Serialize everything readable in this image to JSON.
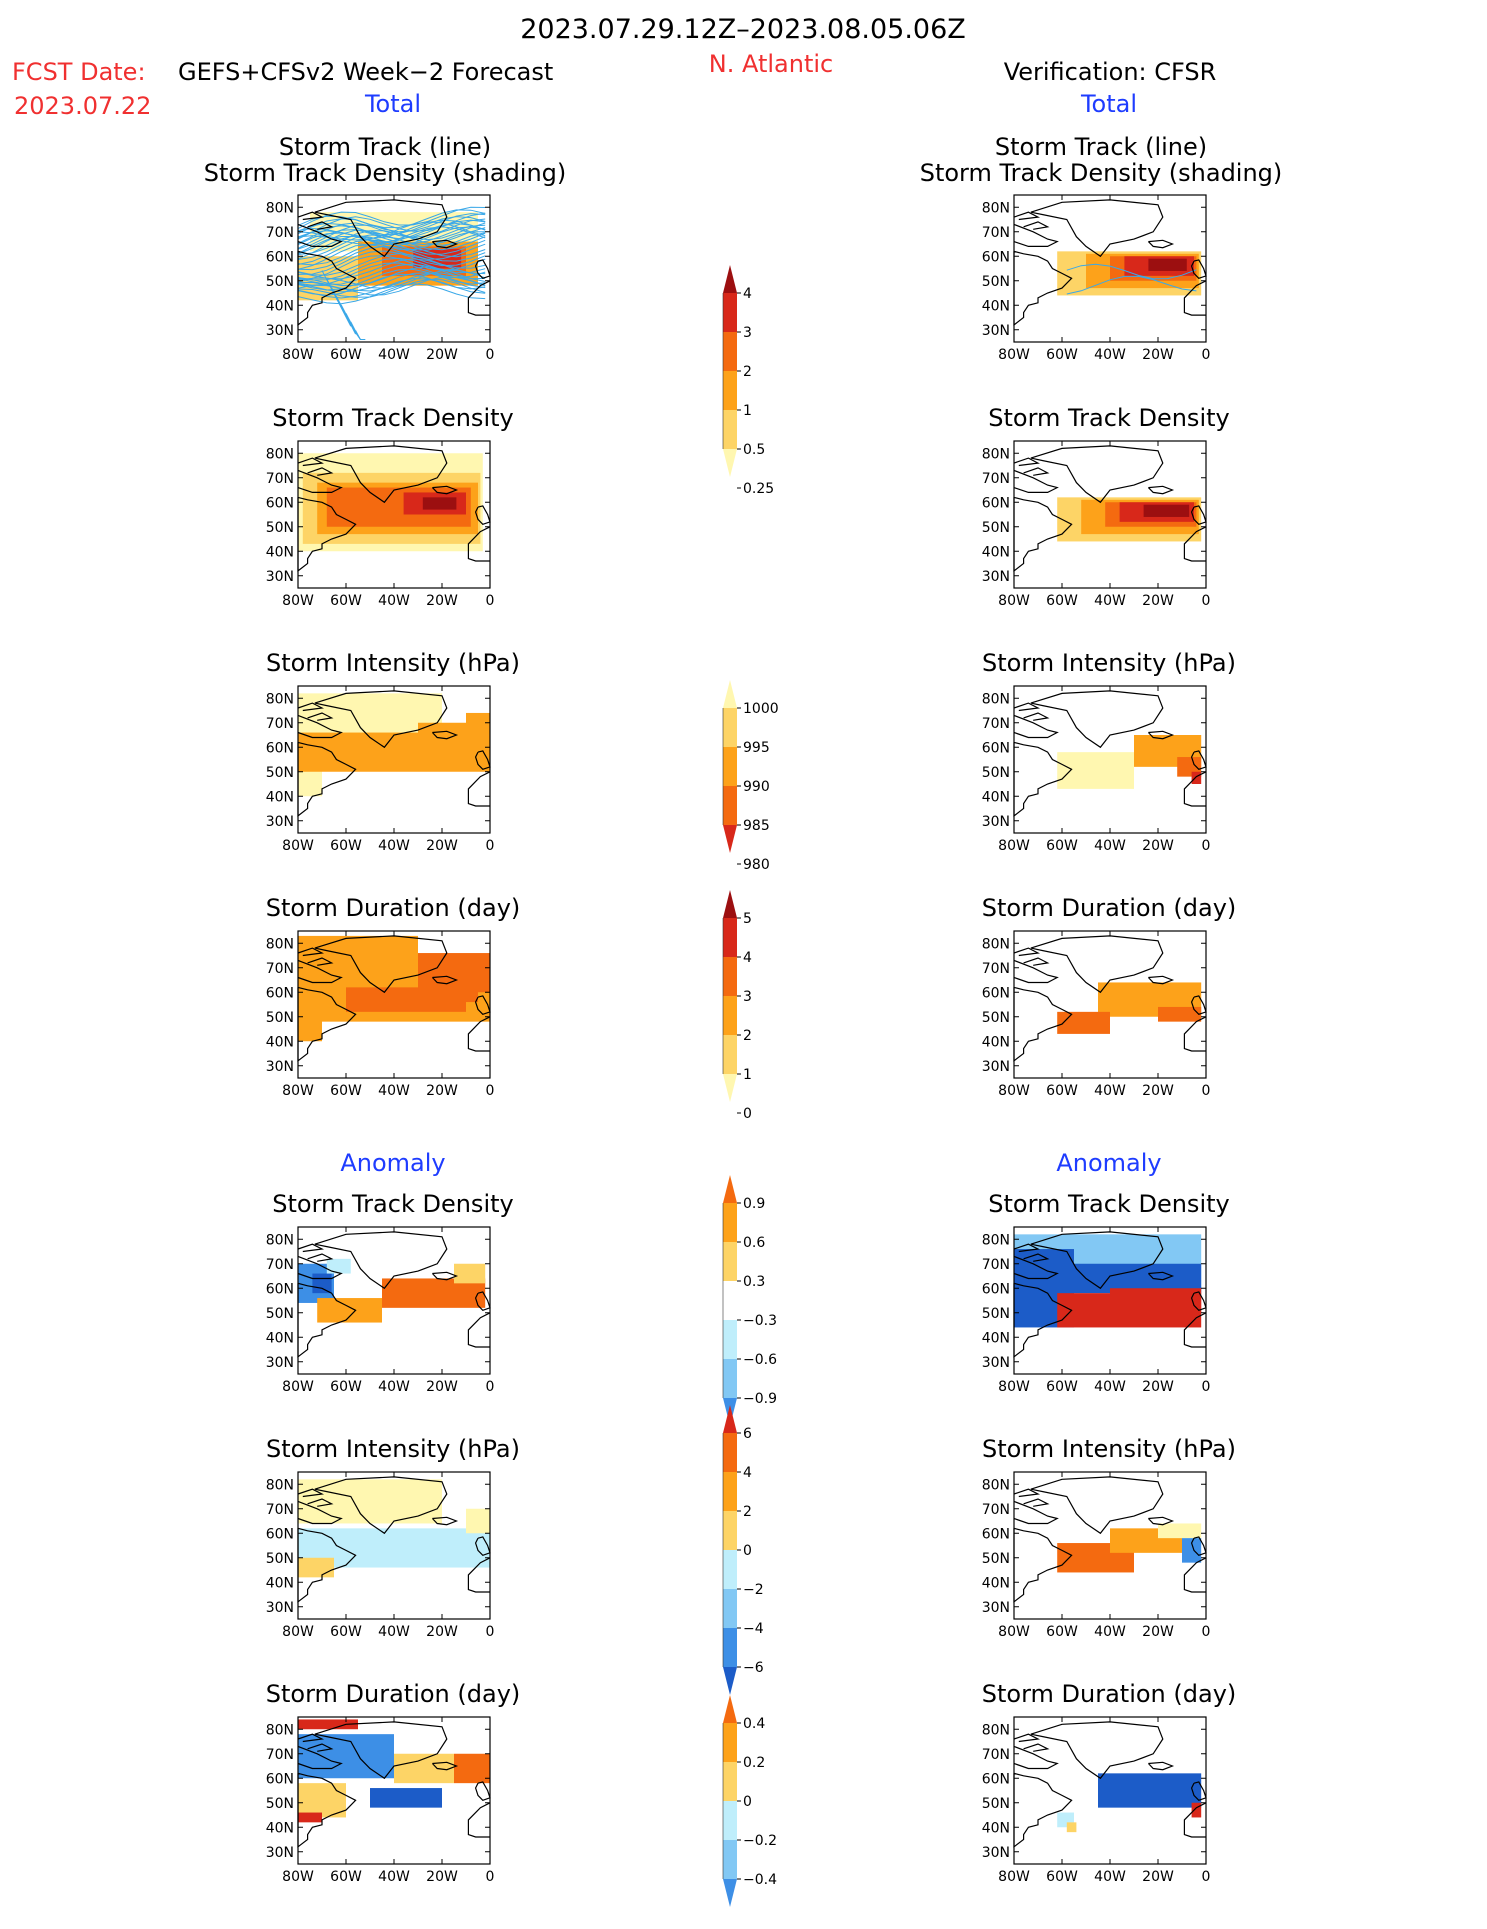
{
  "header": {
    "date_range": "2023.07.29.12Z–2023.08.05.06Z",
    "fcst_label": "FCST Date:",
    "fcst_model": "GEFS+CFSv2 Week−2 Forecast",
    "fcst_date": "2023.07.22",
    "region": "N. Atlantic",
    "verification": "Verification: CFSR",
    "left_total": "Total",
    "right_total": "Total",
    "left_anomaly": "Anomaly",
    "right_anomaly": "Anomaly"
  },
  "panel_titles": {
    "track_line": "Storm Track (line)",
    "track_shading": "Storm Track Density (shading)",
    "density": "Storm Track Density",
    "intensity": "Storm Intensity (hPa)",
    "duration": "Storm Duration (day)"
  },
  "axes": {
    "lon_ticks": [
      "80W",
      "60W",
      "40W",
      "20W",
      "0"
    ],
    "lat_ticks": [
      "80N",
      "70N",
      "60N",
      "50N",
      "40N",
      "30N"
    ]
  },
  "colors": {
    "title_red": "#f03030",
    "title_blue": "#1e3cff",
    "track_line": "#3aa8e8",
    "warm": [
      "#fff7b0",
      "#fdd466",
      "#fda21a",
      "#f46a10",
      "#d8281a",
      "#9c0f10"
    ],
    "cold": [
      "#bfeefb",
      "#82c8f4",
      "#3d8fe6",
      "#1c5cc8"
    ]
  },
  "colorbars": [
    {
      "name": "total-density",
      "labels": [
        "4",
        "3",
        "2",
        "1",
        "0.5",
        "0.25"
      ]
    },
    {
      "name": "total-intensity",
      "labels": [
        "1000",
        "995",
        "990",
        "985",
        "980"
      ]
    },
    {
      "name": "total-duration",
      "labels": [
        "5",
        "4",
        "3",
        "2",
        "1",
        "0"
      ]
    },
    {
      "name": "anomaly-density",
      "labels": [
        "0.9",
        "0.6",
        "0.3",
        "−0.3",
        "−0.6",
        "−0.9"
      ]
    },
    {
      "name": "anomaly-intensity",
      "labels": [
        "6",
        "4",
        "2",
        "0",
        "−2",
        "−4",
        "−6"
      ]
    },
    {
      "name": "anomaly-duration",
      "labels": [
        "0.4",
        "0.2",
        "0",
        "−0.2",
        "−0.4"
      ]
    }
  ],
  "chart_data": [
    {
      "type": "heatmap",
      "name": "forecast-total-track",
      "title": "Storm Track (line) / Storm Track Density (shading)",
      "xlim": [
        -80,
        0
      ],
      "ylim": [
        25,
        85
      ],
      "track_lines": 40,
      "cells": [
        {
          "lon": [
            -75,
            -5
          ],
          "lat": [
            62,
            78
          ],
          "level": 0
        },
        {
          "lon": [
            -80,
            -55
          ],
          "lat": [
            42,
            60
          ],
          "level": 1
        },
        {
          "lon": [
            -55,
            -5
          ],
          "lat": [
            48,
            66
          ],
          "level": 2
        },
        {
          "lon": [
            -45,
            -10
          ],
          "lat": [
            52,
            64
          ],
          "level": 3
        },
        {
          "lon": [
            -32,
            -12
          ],
          "lat": [
            55,
            63
          ],
          "level": 4
        }
      ]
    },
    {
      "type": "heatmap",
      "name": "verification-total-track",
      "title": "Storm Track (line) / Storm Track Density (shading)",
      "xlim": [
        -80,
        0
      ],
      "ylim": [
        25,
        85
      ],
      "track_lines": 2,
      "cells": [
        {
          "lon": [
            -62,
            -2
          ],
          "lat": [
            44,
            62
          ],
          "level": 1
        },
        {
          "lon": [
            -50,
            -3
          ],
          "lat": [
            47,
            61
          ],
          "level": 2
        },
        {
          "lon": [
            -40,
            -4
          ],
          "lat": [
            50,
            60
          ],
          "level": 3
        },
        {
          "lon": [
            -34,
            -5
          ],
          "lat": [
            52,
            60
          ],
          "level": 4
        },
        {
          "lon": [
            -24,
            -8
          ],
          "lat": [
            54,
            59
          ],
          "level": 5
        }
      ]
    },
    {
      "type": "heatmap",
      "name": "forecast-total-density",
      "title": "Storm Track Density",
      "xlim": [
        -80,
        0
      ],
      "ylim": [
        25,
        85
      ],
      "cells": [
        {
          "lon": [
            -80,
            -3
          ],
          "lat": [
            40,
            80
          ],
          "level": 0
        },
        {
          "lon": [
            -78,
            -4
          ],
          "lat": [
            43,
            72
          ],
          "level": 1
        },
        {
          "lon": [
            -72,
            -5
          ],
          "lat": [
            47,
            68
          ],
          "level": 2
        },
        {
          "lon": [
            -68,
            -8
          ],
          "lat": [
            50,
            66
          ],
          "level": 3
        },
        {
          "lon": [
            -36,
            -10
          ],
          "lat": [
            55,
            64
          ],
          "level": 4
        },
        {
          "lon": [
            -28,
            -14
          ],
          "lat": [
            57,
            62
          ],
          "level": 5
        }
      ]
    },
    {
      "type": "heatmap",
      "name": "verification-total-density",
      "title": "Storm Track Density",
      "xlim": [
        -80,
        0
      ],
      "ylim": [
        25,
        85
      ],
      "cells": [
        {
          "lon": [
            -62,
            -2
          ],
          "lat": [
            44,
            62
          ],
          "level": 1
        },
        {
          "lon": [
            -52,
            -3
          ],
          "lat": [
            47,
            61
          ],
          "level": 2
        },
        {
          "lon": [
            -42,
            -4
          ],
          "lat": [
            50,
            60
          ],
          "level": 3
        },
        {
          "lon": [
            -36,
            -5
          ],
          "lat": [
            52,
            60
          ],
          "level": 4
        },
        {
          "lon": [
            -26,
            -7
          ],
          "lat": [
            54,
            59
          ],
          "level": 5
        }
      ]
    },
    {
      "type": "heatmap",
      "name": "forecast-total-intensity",
      "title": "Storm Intensity (hPa)",
      "xlim": [
        -80,
        0
      ],
      "ylim": [
        25,
        85
      ],
      "cells": [
        {
          "lon": [
            -80,
            -20
          ],
          "lat": [
            64,
            82
          ],
          "level": 0
        },
        {
          "lon": [
            -80,
            -70
          ],
          "lat": [
            40,
            52
          ],
          "level": 0
        },
        {
          "lon": [
            -80,
            0
          ],
          "lat": [
            50,
            66
          ],
          "level": 2
        },
        {
          "lon": [
            -30,
            0
          ],
          "lat": [
            60,
            70
          ],
          "level": 2
        },
        {
          "lon": [
            -10,
            0
          ],
          "lat": [
            66,
            74
          ],
          "level": 2
        }
      ]
    },
    {
      "type": "heatmap",
      "name": "verification-total-intensity",
      "title": "Storm Intensity (hPa)",
      "xlim": [
        -80,
        0
      ],
      "ylim": [
        25,
        85
      ],
      "cells": [
        {
          "lon": [
            -62,
            -30
          ],
          "lat": [
            43,
            58
          ],
          "level": 0
        },
        {
          "lon": [
            -30,
            -2
          ],
          "lat": [
            52,
            65
          ],
          "level": 2
        },
        {
          "lon": [
            -12,
            -2
          ],
          "lat": [
            48,
            56
          ],
          "level": 3
        },
        {
          "lon": [
            -6,
            -2
          ],
          "lat": [
            45,
            50
          ],
          "level": 4
        }
      ]
    },
    {
      "type": "heatmap",
      "name": "forecast-total-duration",
      "title": "Storm Duration (day)",
      "xlim": [
        -80,
        0
      ],
      "ylim": [
        25,
        85
      ],
      "cells": [
        {
          "lon": [
            -80,
            -30
          ],
          "lat": [
            66,
            83
          ],
          "level": 2
        },
        {
          "lon": [
            -80,
            -70
          ],
          "lat": [
            40,
            66
          ],
          "level": 2
        },
        {
          "lon": [
            -80,
            0
          ],
          "lat": [
            48,
            68
          ],
          "level": 2
        },
        {
          "lon": [
            -30,
            0
          ],
          "lat": [
            60,
            76
          ],
          "level": 3
        },
        {
          "lon": [
            -60,
            -10
          ],
          "lat": [
            52,
            62
          ],
          "level": 3
        },
        {
          "lon": [
            -20,
            -5
          ],
          "lat": [
            56,
            64
          ],
          "level": 3
        }
      ]
    },
    {
      "type": "heatmap",
      "name": "verification-total-duration",
      "title": "Storm Duration (day)",
      "xlim": [
        -80,
        0
      ],
      "ylim": [
        25,
        85
      ],
      "cells": [
        {
          "lon": [
            -45,
            -2
          ],
          "lat": [
            50,
            64
          ],
          "level": 2
        },
        {
          "lon": [
            -62,
            -40
          ],
          "lat": [
            43,
            52
          ],
          "level": 3
        },
        {
          "lon": [
            -20,
            -2
          ],
          "lat": [
            48,
            54
          ],
          "level": 3
        }
      ]
    },
    {
      "type": "heatmap",
      "name": "forecast-anomaly-density",
      "title": "Storm Track Density",
      "xlim": [
        -80,
        0
      ],
      "ylim": [
        25,
        85
      ],
      "cells": [
        {
          "lon": [
            -80,
            -65
          ],
          "lat": [
            54,
            70
          ],
          "cold": 2
        },
        {
          "lon": [
            -74,
            -66
          ],
          "lat": [
            58,
            66
          ],
          "cold": 3
        },
        {
          "lon": [
            -68,
            -58
          ],
          "lat": [
            66,
            72
          ],
          "cold": 0
        },
        {
          "lon": [
            -72,
            -45
          ],
          "lat": [
            46,
            56
          ],
          "level": 2
        },
        {
          "lon": [
            -45,
            -2
          ],
          "lat": [
            52,
            64
          ],
          "level": 3
        },
        {
          "lon": [
            -15,
            -2
          ],
          "lat": [
            62,
            70
          ],
          "level": 1
        }
      ]
    },
    {
      "type": "heatmap",
      "name": "verification-anomaly-density",
      "title": "Storm Track Density",
      "xlim": [
        -80,
        0
      ],
      "ylim": [
        25,
        85
      ],
      "cells": [
        {
          "lon": [
            -80,
            -2
          ],
          "lat": [
            58,
            82
          ],
          "cold": 1
        },
        {
          "lon": [
            -80,
            -55
          ],
          "lat": [
            44,
            76
          ],
          "cold": 3
        },
        {
          "lon": [
            -55,
            -2
          ],
          "lat": [
            58,
            70
          ],
          "cold": 3
        },
        {
          "lon": [
            -62,
            -2
          ],
          "lat": [
            44,
            58
          ],
          "level": 4
        },
        {
          "lon": [
            -40,
            -2
          ],
          "lat": [
            50,
            60
          ],
          "level": 4
        }
      ]
    },
    {
      "type": "heatmap",
      "name": "forecast-anomaly-intensity",
      "title": "Storm Intensity (hPa)",
      "xlim": [
        -80,
        0
      ],
      "ylim": [
        25,
        85
      ],
      "cells": [
        {
          "lon": [
            -80,
            -20
          ],
          "lat": [
            64,
            82
          ],
          "level": 0
        },
        {
          "lon": [
            -80,
            0
          ],
          "lat": [
            46,
            62
          ],
          "cold": 0
        },
        {
          "lon": [
            -10,
            0
          ],
          "lat": [
            60,
            70
          ],
          "level": 0
        },
        {
          "lon": [
            -80,
            -65
          ],
          "lat": [
            42,
            50
          ],
          "level": 1
        }
      ]
    },
    {
      "type": "heatmap",
      "name": "verification-anomaly-intensity",
      "title": "Storm Intensity (hPa)",
      "xlim": [
        -80,
        0
      ],
      "ylim": [
        25,
        85
      ],
      "cells": [
        {
          "lon": [
            -62,
            -30
          ],
          "lat": [
            44,
            56
          ],
          "level": 3
        },
        {
          "lon": [
            -40,
            -10
          ],
          "lat": [
            52,
            62
          ],
          "level": 2
        },
        {
          "lon": [
            -20,
            -2
          ],
          "lat": [
            58,
            64
          ],
          "level": 0
        },
        {
          "lon": [
            -10,
            -2
          ],
          "lat": [
            48,
            58
          ],
          "cold": 2
        }
      ]
    },
    {
      "type": "heatmap",
      "name": "forecast-anomaly-duration",
      "title": "Storm Duration (day)",
      "xlim": [
        -80,
        0
      ],
      "ylim": [
        25,
        85
      ],
      "cells": [
        {
          "lon": [
            -80,
            -40
          ],
          "lat": [
            60,
            78
          ],
          "cold": 2
        },
        {
          "lon": [
            -80,
            -55
          ],
          "lat": [
            80,
            84
          ],
          "level": 4
        },
        {
          "lon": [
            -40,
            -15
          ],
          "lat": [
            58,
            70
          ],
          "level": 1
        },
        {
          "lon": [
            -15,
            0
          ],
          "lat": [
            58,
            70
          ],
          "level": 3
        },
        {
          "lon": [
            -80,
            -60
          ],
          "lat": [
            44,
            58
          ],
          "level": 1
        },
        {
          "lon": [
            -50,
            -20
          ],
          "lat": [
            48,
            56
          ],
          "cold": 3
        },
        {
          "lon": [
            -80,
            -70
          ],
          "lat": [
            42,
            46
          ],
          "level": 4
        }
      ]
    },
    {
      "type": "heatmap",
      "name": "verification-anomaly-duration",
      "title": "Storm Duration (day)",
      "xlim": [
        -80,
        0
      ],
      "ylim": [
        25,
        85
      ],
      "cells": [
        {
          "lon": [
            -45,
            -2
          ],
          "lat": [
            48,
            62
          ],
          "cold": 3
        },
        {
          "lon": [
            -62,
            -55
          ],
          "lat": [
            40,
            46
          ],
          "cold": 0
        },
        {
          "lon": [
            -58,
            -54
          ],
          "lat": [
            38,
            42
          ],
          "level": 1
        },
        {
          "lon": [
            -6,
            -2
          ],
          "lat": [
            44,
            50
          ],
          "level": 4
        }
      ]
    }
  ]
}
